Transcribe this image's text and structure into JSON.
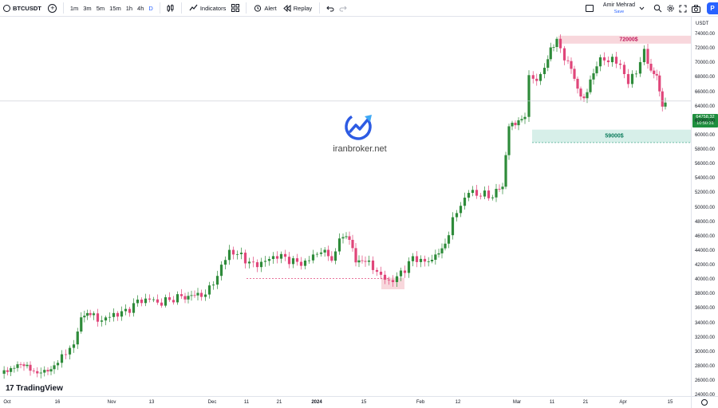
{
  "toolbar": {
    "symbol": "BTCUSDT",
    "intervals": [
      "1m",
      "3m",
      "5m",
      "15m",
      "1h",
      "4h",
      "D"
    ],
    "active_interval": "D",
    "indicators_label": "Indicators",
    "alert_label": "Alert",
    "replay_label": "Replay",
    "user_name": "Amir Mehrad",
    "user_status": "Save",
    "publish_label": "P"
  },
  "price_axis": {
    "currency": "USDT",
    "labels": [
      "74000.00",
      "72000.00",
      "70000.00",
      "68000.00",
      "66000.00",
      "64000.00",
      "62000.00",
      "60000.00",
      "58000.00",
      "56000.00",
      "54000.00",
      "52000.00",
      "50000.00",
      "48000.00",
      "46000.00",
      "44000.00",
      "42000.00",
      "40000.00",
      "38000.00",
      "36000.00",
      "34000.00",
      "32000.00",
      "30000.00",
      "28000.00",
      "26000.00",
      "24000.00"
    ],
    "last_price": "64758.32",
    "countdown": "10:50:31"
  },
  "time_axis": {
    "labels": [
      "Oct",
      "16",
      "Nov",
      "13",
      "Dec",
      "11",
      "21",
      "2024",
      "15",
      "Feb",
      "12",
      "Mar",
      "11",
      "21",
      "Apr",
      "15"
    ],
    "bold_label": "2024"
  },
  "zones": {
    "resistance_label": "72000$",
    "support_label": "59000$",
    "resistance_color": "#f8d7dc",
    "support_color": "#d7efe9"
  },
  "watermark": {
    "text": "iranbroker.net"
  },
  "branding": {
    "name": "TradingView",
    "logo": "17"
  },
  "colors": {
    "up": "#2e8b3a",
    "down": "#e0467a",
    "accent": "#2962ff"
  }
}
